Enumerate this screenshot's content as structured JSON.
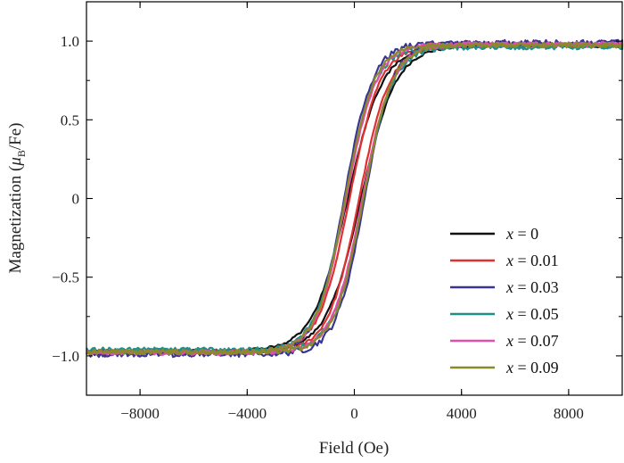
{
  "chart_data": {
    "type": "line",
    "xlabel": "Field (Oe)",
    "ylabel_prefix": "Magnetization (",
    "ylabel_symbol": "μ",
    "ylabel_sub": "B",
    "ylabel_suffix": "/Fe)",
    "xlim": [
      -10000,
      10000
    ],
    "ylim": [
      -1.25,
      1.25
    ],
    "x_ticks": [
      -8000,
      -4000,
      0,
      4000,
      8000
    ],
    "x_tick_labels": [
      "−8000",
      "−4000",
      "0",
      "4000",
      "8000"
    ],
    "y_ticks": [
      1.0,
      0.5,
      0,
      -0.5,
      -1.0
    ],
    "y_tick_labels": [
      "1.0",
      "0.5",
      "0",
      "−0.5",
      "−1.0"
    ],
    "grid": false,
    "legend_position": "bottom-right",
    "series": [
      {
        "name": "0",
        "color": "#111111",
        "hc": 250,
        "width": 1300,
        "noise": 0.01,
        "ms": 0.97
      },
      {
        "name": "0.01",
        "color": "#e03030",
        "hc": 180,
        "width": 1150,
        "noise": 0.012,
        "ms": 0.975
      },
      {
        "name": "0.03",
        "color": "#3a3590",
        "hc": 380,
        "width": 1050,
        "noise": 0.022,
        "ms": 0.985
      },
      {
        "name": "0.05",
        "color": "#1f8f8a",
        "hc": 330,
        "width": 1100,
        "noise": 0.018,
        "ms": 0.965
      },
      {
        "name": "0.07",
        "color": "#e04fa8",
        "hc": 300,
        "width": 1120,
        "noise": 0.014,
        "ms": 0.98
      },
      {
        "name": "0.09",
        "color": "#8a8a2a",
        "hc": 340,
        "width": 1080,
        "noise": 0.016,
        "ms": 0.975
      }
    ]
  }
}
